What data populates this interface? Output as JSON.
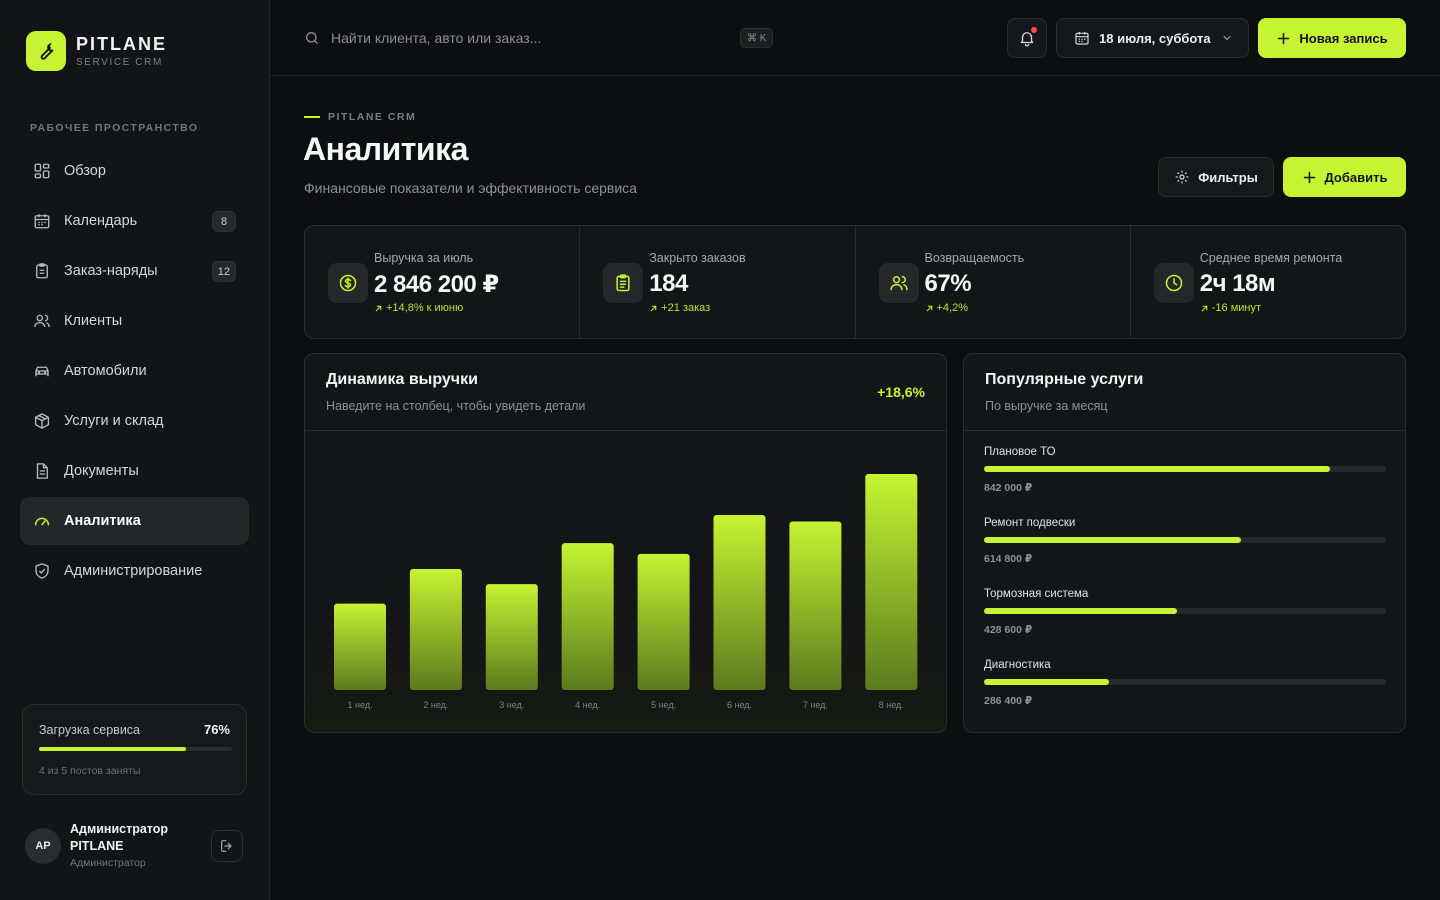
{
  "brand": {
    "name": "PITLANE",
    "sub": "SERVICE CRM",
    "logo_icon": "wrench-icon",
    "accent": "#c6f432"
  },
  "sidebar": {
    "section_label": "РАБОЧЕЕ ПРОСТРАНСТВО",
    "items": [
      {
        "label": "Обзор",
        "icon": "grid-icon",
        "badge": ""
      },
      {
        "label": "Календарь",
        "icon": "calendar-icon",
        "badge": "8"
      },
      {
        "label": "Заказ-наряды",
        "icon": "clipboard-icon",
        "badge": "12"
      },
      {
        "label": "Клиенты",
        "icon": "users-icon",
        "badge": ""
      },
      {
        "label": "Автомобили",
        "icon": "car-icon",
        "badge": ""
      },
      {
        "label": "Услуги и склад",
        "icon": "box-icon",
        "badge": ""
      },
      {
        "label": "Документы",
        "icon": "document-icon",
        "badge": ""
      },
      {
        "label": "Аналитика",
        "icon": "gauge-icon",
        "badge": "",
        "active": true
      },
      {
        "label": "Администрирование",
        "icon": "shield-icon",
        "badge": ""
      }
    ],
    "load": {
      "title": "Загрузка сервиса",
      "percent_label": "76%",
      "percent": 76,
      "note": "4 из 5 постов заняты"
    },
    "user": {
      "initials": "AP",
      "name": "Администратор PITLANE",
      "role": "Администратор"
    }
  },
  "topbar": {
    "search_placeholder": "Найти клиента, авто или заказ...",
    "shortcut": "⌘ K",
    "date_label": "18 июля, суббота",
    "new_label": "Новая запись"
  },
  "page": {
    "kicker": "PITLANE CRM",
    "title": "Аналитика",
    "subtitle": "Финансовые показатели и эффективность сервиса",
    "filters_label": "Фильтры",
    "add_label": "Добавить"
  },
  "stats": [
    {
      "label": "Выручка за июль",
      "value": "2 846 200 ₽",
      "delta": "+14,8% к июню",
      "icon": "dollar-icon"
    },
    {
      "label": "Закрыто заказов",
      "value": "184",
      "delta": "+21 заказ",
      "icon": "clipboard-icon"
    },
    {
      "label": "Возвращаемость",
      "value": "67%",
      "delta": "+4,2%",
      "icon": "users-icon"
    },
    {
      "label": "Среднее время ремонта",
      "value": "2ч 18м",
      "delta": "-16 минут",
      "icon": "clock-icon"
    }
  ],
  "revenue": {
    "title": "Динамика выручки",
    "subtitle": "Наведите на столбец, чтобы увидеть детали",
    "tag": "+18,6%"
  },
  "chart_data": {
    "type": "bar",
    "categories": [
      "1 нед.",
      "2 нед.",
      "3 нед.",
      "4 нед.",
      "5 нед.",
      "6 нед.",
      "7 нед.",
      "8 нед."
    ],
    "values": [
      40,
      56,
      49,
      68,
      63,
      81,
      78,
      100
    ],
    "ylim": [
      0,
      100
    ],
    "grid": false,
    "color": "#c6f432"
  },
  "services": {
    "title": "Популярные услуги",
    "subtitle": "По выручке за месяц",
    "items": [
      {
        "name": "Плановое ТО",
        "value": "842 000 ₽",
        "share": 86
      },
      {
        "name": "Ремонт подвески",
        "value": "614 800 ₽",
        "share": 64
      },
      {
        "name": "Тормозная система",
        "value": "428 600 ₽",
        "share": 48
      },
      {
        "name": "Диагностика",
        "value": "286 400 ₽",
        "share": 31
      }
    ]
  }
}
